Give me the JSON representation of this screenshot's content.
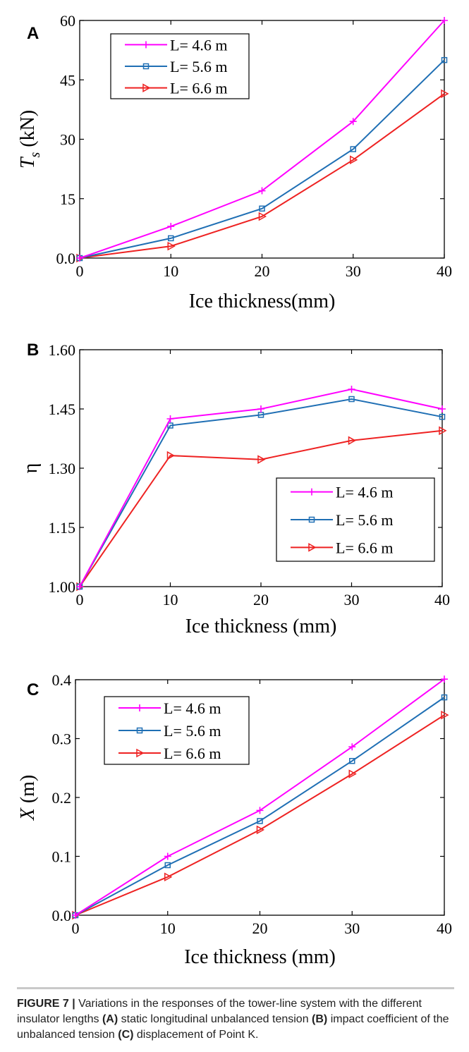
{
  "chart_data": [
    {
      "panel_label": "A",
      "type": "line",
      "xlabel": "Ice thickness(mm)",
      "ylabel_main": "T",
      "ylabel_sub": "s",
      "ylabel_rest": " (kN)",
      "x": [
        0,
        10,
        20,
        30,
        40
      ],
      "xlim": [
        0,
        40
      ],
      "xticks": [
        "0",
        "10",
        "20",
        "30",
        "40"
      ],
      "ylim": [
        0,
        60
      ],
      "yticks": [
        "0.0",
        "15",
        "30",
        "45",
        "60"
      ],
      "legend_position": "top-left",
      "series": [
        {
          "name": "L= 4.6 m",
          "color": "#ff00ff",
          "marker": "plus",
          "values": [
            0,
            8,
            17,
            34.5,
            60
          ]
        },
        {
          "name": "L= 5.6 m",
          "color": "#1f6fb4",
          "marker": "square",
          "values": [
            0,
            5,
            12.5,
            27.5,
            50
          ]
        },
        {
          "name": "L= 6.6 m",
          "color": "#ee2222",
          "marker": "triangle-right",
          "values": [
            0,
            3,
            10.5,
            24.8,
            41.5
          ]
        }
      ]
    },
    {
      "panel_label": "B",
      "type": "line",
      "xlabel": "Ice thickness (mm)",
      "ylabel_main": "η",
      "ylabel_sub": "",
      "ylabel_rest": "",
      "x": [
        0,
        10,
        20,
        30,
        40
      ],
      "xlim": [
        0,
        40
      ],
      "xticks": [
        "0",
        "10",
        "20",
        "30",
        "40"
      ],
      "ylim": [
        1.0,
        1.6
      ],
      "yticks": [
        "1.00",
        "1.15",
        "1.30",
        "1.45",
        "1.60"
      ],
      "legend_position": "bottom-right",
      "series": [
        {
          "name": "L= 4.6 m",
          "color": "#ff00ff",
          "marker": "plus",
          "values": [
            1.0,
            1.425,
            1.45,
            1.5,
            1.45
          ]
        },
        {
          "name": "L= 5.6 m",
          "color": "#1f6fb4",
          "marker": "square",
          "values": [
            1.0,
            1.408,
            1.435,
            1.475,
            1.43
          ]
        },
        {
          "name": "L= 6.6 m",
          "color": "#ee2222",
          "marker": "triangle-right",
          "values": [
            1.0,
            1.332,
            1.322,
            1.37,
            1.395
          ]
        }
      ]
    },
    {
      "panel_label": "C",
      "type": "line",
      "xlabel": "Ice thickness (mm)",
      "ylabel_main": "X",
      "ylabel_sub": "",
      "ylabel_rest": " (m)",
      "x": [
        0,
        10,
        20,
        30,
        40
      ],
      "xlim": [
        0,
        40
      ],
      "xticks": [
        "0",
        "10",
        "20",
        "30",
        "40"
      ],
      "ylim": [
        0,
        0.4
      ],
      "yticks": [
        "0.0",
        "0.1",
        "0.2",
        "0.3",
        "0.4"
      ],
      "legend_position": "top-left",
      "series": [
        {
          "name": "L= 4.6 m",
          "color": "#ff00ff",
          "marker": "plus",
          "values": [
            0,
            0.1,
            0.178,
            0.286,
            0.401
          ]
        },
        {
          "name": "L= 5.6 m",
          "color": "#1f6fb4",
          "marker": "square",
          "values": [
            0,
            0.085,
            0.16,
            0.262,
            0.37
          ]
        },
        {
          "name": "L= 6.6 m",
          "color": "#ee2222",
          "marker": "triangle-right",
          "values": [
            0,
            0.065,
            0.145,
            0.24,
            0.34
          ]
        }
      ]
    }
  ],
  "caption": {
    "figure_label": "FIGURE 7 |",
    "text_1": " Variations in the responses of the tower-line system with the different insulator lengths ",
    "ref_a": "(A)",
    "text_2": " static longitudinal unbalanced tension ",
    "ref_b": "(B)",
    "text_3": " impact coefficient of the unbalanced tension ",
    "ref_c": "(C)",
    "text_4": " displacement of Point K."
  }
}
